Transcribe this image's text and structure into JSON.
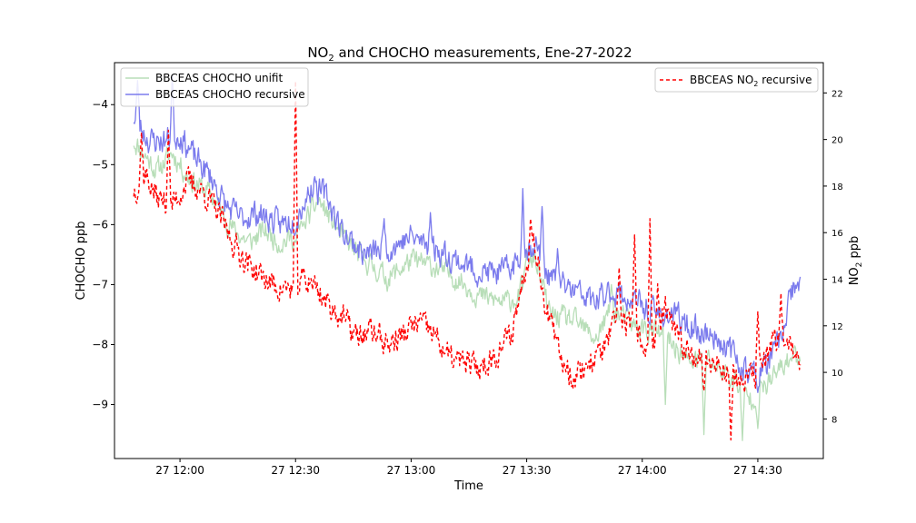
{
  "chart_data": {
    "type": "line",
    "title_main": "NO",
    "title_sub": "2",
    "title_rest": " and CHOCHO measurements, Ene-27-2022",
    "xlabel": "Time",
    "ylabel_left": "CHOCHO ppb",
    "ylabel_right_main": "NO",
    "ylabel_right_sub": "2",
    "ylabel_right_rest": " ppb",
    "x_range": [
      "11:45",
      "14:52"
    ],
    "ylim_left": [
      -9.9,
      -3.3
    ],
    "ylim_right": [
      6.3,
      23.3
    ],
    "x_ticks": [
      {
        "minute": 720,
        "label": "27 12:00"
      },
      {
        "minute": 750,
        "label": "27 12:30"
      },
      {
        "minute": 780,
        "label": "27 13:00"
      },
      {
        "minute": 810,
        "label": "27 13:30"
      },
      {
        "minute": 840,
        "label": "27 14:00"
      },
      {
        "minute": 870,
        "label": "27 14:30"
      }
    ],
    "y_left_ticks": [
      -4,
      -5,
      -6,
      -7,
      -8,
      -9
    ],
    "y_right_ticks": [
      8,
      10,
      12,
      14,
      16,
      18,
      20,
      22
    ],
    "legend_left_position": "upper-left",
    "legend_right_position": "upper-right",
    "x_start_minute": 708,
    "x_end_minute": 881,
    "series": [
      {
        "name": "BBCEAS CHOCHO unifit",
        "axis": "left",
        "color": "#b8deb8",
        "dash": "none",
        "anchors": [
          [
            708,
            -4.6
          ],
          [
            714,
            -5.1
          ],
          [
            718,
            -4.8
          ],
          [
            722,
            -5.2
          ],
          [
            728,
            -5.5
          ],
          [
            734,
            -6.1
          ],
          [
            738,
            -6.3
          ],
          [
            742,
            -6.1
          ],
          [
            746,
            -6.3
          ],
          [
            750,
            -6.2
          ],
          [
            756,
            -5.6
          ],
          [
            762,
            -6.2
          ],
          [
            768,
            -6.6
          ],
          [
            774,
            -6.9
          ],
          [
            780,
            -6.6
          ],
          [
            786,
            -6.7
          ],
          [
            792,
            -6.9
          ],
          [
            798,
            -7.2
          ],
          [
            804,
            -7.3
          ],
          [
            808,
            -7.2
          ],
          [
            812,
            -6.5
          ],
          [
            816,
            -7.5
          ],
          [
            822,
            -7.6
          ],
          [
            828,
            -7.9
          ],
          [
            832,
            -7.4
          ],
          [
            838,
            -7.7
          ],
          [
            844,
            -7.8
          ],
          [
            848,
            -8.0
          ],
          [
            852,
            -8.3
          ],
          [
            856,
            -8.2
          ],
          [
            860,
            -8.4
          ],
          [
            864,
            -8.6
          ],
          [
            868,
            -8.9
          ],
          [
            872,
            -8.7
          ],
          [
            876,
            -8.4
          ],
          [
            879,
            -8.2
          ]
        ],
        "spikes": [
          [
            750,
            -6.3
          ],
          [
            752,
            -6.0
          ],
          [
            768,
            -6.6
          ],
          [
            846,
            -9.0
          ],
          [
            856,
            -9.5
          ],
          [
            866,
            -9.6
          ],
          [
            870,
            -9.4
          ],
          [
            832,
            -7.0
          ],
          [
            810,
            -6.4
          ]
        ],
        "seed": 11,
        "noise": 0.3
      },
      {
        "name": "BBCEAS CHOCHO recursive",
        "axis": "left",
        "color": "#7b7bed",
        "dash": "none",
        "anchors": [
          [
            708,
            -4.2
          ],
          [
            712,
            -4.6
          ],
          [
            716,
            -4.6
          ],
          [
            720,
            -4.5
          ],
          [
            724,
            -4.9
          ],
          [
            728,
            -5.2
          ],
          [
            732,
            -5.7
          ],
          [
            736,
            -5.9
          ],
          [
            740,
            -5.8
          ],
          [
            746,
            -6.0
          ],
          [
            750,
            -5.9
          ],
          [
            754,
            -5.4
          ],
          [
            758,
            -5.5
          ],
          [
            762,
            -6.1
          ],
          [
            768,
            -6.5
          ],
          [
            774,
            -6.4
          ],
          [
            780,
            -6.2
          ],
          [
            786,
            -6.4
          ],
          [
            792,
            -6.6
          ],
          [
            798,
            -6.8
          ],
          [
            804,
            -6.8
          ],
          [
            808,
            -6.6
          ],
          [
            812,
            -6.3
          ],
          [
            816,
            -6.9
          ],
          [
            822,
            -7.1
          ],
          [
            828,
            -7.3
          ],
          [
            832,
            -7.1
          ],
          [
            838,
            -7.3
          ],
          [
            844,
            -7.5
          ],
          [
            848,
            -7.5
          ],
          [
            852,
            -7.7
          ],
          [
            856,
            -7.8
          ],
          [
            860,
            -7.9
          ],
          [
            864,
            -8.2
          ],
          [
            868,
            -8.5
          ],
          [
            872,
            -8.4
          ],
          [
            876,
            -7.9
          ],
          [
            879,
            -7.1
          ]
        ],
        "spikes": [
          [
            709,
            -3.6
          ],
          [
            718,
            -3.5
          ],
          [
            755,
            -5.2
          ],
          [
            773,
            -5.9
          ],
          [
            785,
            -5.8
          ],
          [
            809,
            -5.4
          ],
          [
            814,
            -5.7
          ],
          [
            818,
            -6.4
          ],
          [
            870,
            -8.8
          ],
          [
            878,
            -7.1
          ]
        ],
        "seed": 23,
        "noise": 0.35
      },
      {
        "name_main": "BBCEAS NO",
        "name_sub": "2",
        "name_rest": " recursive",
        "axis": "right",
        "color": "#ff0000",
        "dash": "4,3",
        "anchors": [
          [
            708,
            17.8
          ],
          [
            711,
            18.5
          ],
          [
            714,
            17.5
          ],
          [
            718,
            17.2
          ],
          [
            722,
            18.2
          ],
          [
            726,
            17.8
          ],
          [
            730,
            16.8
          ],
          [
            734,
            15.5
          ],
          [
            738,
            14.6
          ],
          [
            742,
            14.0
          ],
          [
            746,
            13.6
          ],
          [
            750,
            13.6
          ],
          [
            754,
            14.0
          ],
          [
            758,
            13.0
          ],
          [
            762,
            12.4
          ],
          [
            766,
            11.5
          ],
          [
            770,
            11.8
          ],
          [
            774,
            11.2
          ],
          [
            778,
            11.6
          ],
          [
            782,
            12.2
          ],
          [
            786,
            11.6
          ],
          [
            790,
            10.6
          ],
          [
            794,
            10.4
          ],
          [
            798,
            10.2
          ],
          [
            802,
            10.8
          ],
          [
            806,
            11.6
          ],
          [
            810,
            14.8
          ],
          [
            812,
            15.8
          ],
          [
            815,
            12.8
          ],
          [
            818,
            11.0
          ],
          [
            822,
            9.8
          ],
          [
            826,
            10.4
          ],
          [
            830,
            11.0
          ],
          [
            834,
            12.4
          ],
          [
            838,
            11.8
          ],
          [
            842,
            10.8
          ],
          [
            846,
            12.6
          ],
          [
            850,
            11.2
          ],
          [
            854,
            10.8
          ],
          [
            858,
            10.4
          ],
          [
            862,
            10.2
          ],
          [
            866,
            9.5
          ],
          [
            870,
            10.0
          ],
          [
            874,
            11.2
          ],
          [
            878,
            11.5
          ],
          [
            880,
            10.2
          ]
        ],
        "spikes": [
          [
            710,
            20.3
          ],
          [
            717,
            20.4
          ],
          [
            750,
            22.5
          ],
          [
            752,
            14.5
          ],
          [
            811,
            16.6
          ],
          [
            838,
            15.9
          ],
          [
            842,
            16.6
          ],
          [
            844,
            13.8
          ],
          [
            834,
            14.5
          ],
          [
            856,
            9.2
          ],
          [
            863,
            7.1
          ],
          [
            870,
            12.6
          ],
          [
            876,
            13.4
          ]
        ],
        "seed": 37,
        "noise": 0.9
      }
    ]
  }
}
